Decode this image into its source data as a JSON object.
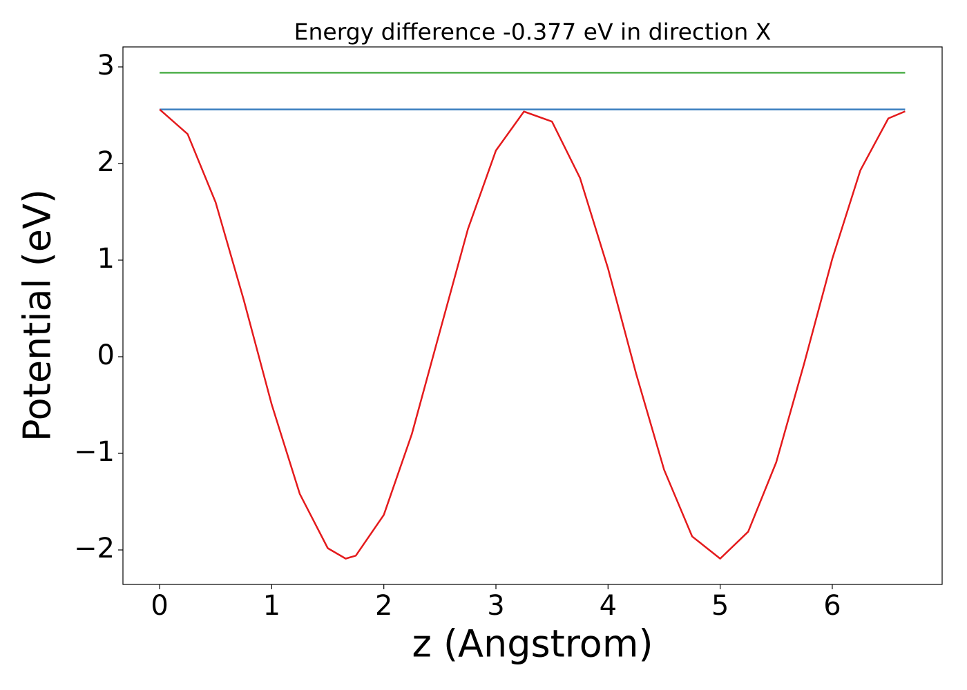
{
  "chart_data": {
    "type": "line",
    "title": "Energy difference -0.377 eV in direction X",
    "xlabel": "z (Angstrom)",
    "ylabel": "Potential (eV)",
    "xlim": [
      -0.327,
      6.98
    ],
    "ylim": [
      -2.357,
      3.207
    ],
    "xticks": [
      0,
      1,
      2,
      3,
      4,
      5,
      6
    ],
    "yticks": [
      {
        "value": -2,
        "label": "−2"
      },
      {
        "value": -1,
        "label": "−1"
      },
      0,
      1,
      2,
      3
    ],
    "grid": false,
    "series": [
      {
        "color": "#4daf4a",
        "x": [
          0,
          6.65
        ],
        "values": [
          2.94,
          2.94
        ]
      },
      {
        "color": "#3a7ebf",
        "x": [
          0,
          6.65
        ],
        "values": [
          2.56,
          2.56
        ]
      },
      {
        "color": "#e41a1c",
        "x": [
          0,
          0.25,
          0.5,
          0.75,
          1.0,
          1.25,
          1.5,
          1.66,
          1.75,
          2.0,
          2.25,
          2.5,
          2.75,
          3.0,
          3.25,
          3.5,
          3.75,
          4.0,
          4.25,
          4.5,
          4.75,
          5.0,
          5.25,
          5.5,
          5.75,
          6.0,
          6.25,
          6.5,
          6.65
        ],
        "values": [
          2.56,
          2.305,
          1.597,
          0.59,
          -0.495,
          -1.419,
          -1.982,
          -2.09,
          -2.059,
          -1.637,
          -0.8,
          0.262,
          1.321,
          2.135,
          2.538,
          2.434,
          1.85,
          0.913,
          -0.174,
          -1.17,
          -1.86,
          -2.09,
          -1.811,
          -1.093,
          -0.067,
          1.013,
          1.928,
          2.467,
          2.54
        ]
      }
    ]
  }
}
